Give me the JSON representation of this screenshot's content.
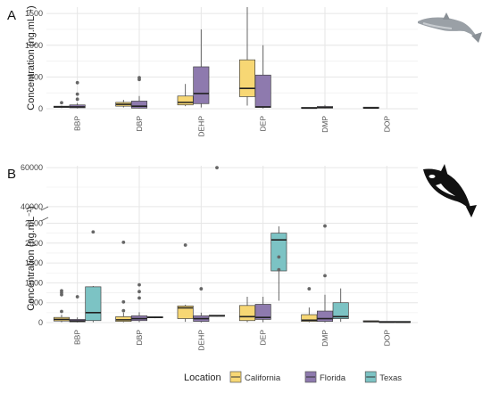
{
  "figure": {
    "panel_a_letter": "A",
    "panel_b_letter": "B",
    "legend_title": "Location",
    "legend_items": [
      {
        "label": "California",
        "color": "#F7D774"
      },
      {
        "label": "Florida",
        "color": "#8E7AAE"
      },
      {
        "label": "Texas",
        "color": "#7CC3C4"
      }
    ],
    "panel_a_icon": "dolphin-icon",
    "panel_b_icon": "orca-icon"
  },
  "chart_data": [
    {
      "type": "box",
      "panel": "A",
      "ylabel_main": "Concentration (ng.mL",
      "ylabel_sup": "−1",
      "ylabel_end": ")",
      "ylim": [
        0,
        1600
      ],
      "yticks": [
        0,
        500,
        1000,
        1500
      ],
      "categories": [
        "BBP",
        "DBP",
        "DEHP",
        "DEP",
        "DMP",
        "DOP"
      ],
      "grid": true,
      "series": [
        {
          "name": "California",
          "color": "#F7D774",
          "boxes": [
            {
              "category": "BBP",
              "q1": 20,
              "median": 30,
              "q3": 40,
              "whisker_low": 10,
              "whisker_high": 50,
              "outliers": [
                95
              ]
            },
            {
              "category": "DBP",
              "q1": 40,
              "median": 70,
              "q3": 100,
              "whisker_low": 20,
              "whisker_high": 140,
              "outliers": []
            },
            {
              "category": "DEHP",
              "q1": 60,
              "median": 100,
              "q3": 200,
              "whisker_low": 40,
              "whisker_high": 390,
              "outliers": []
            },
            {
              "category": "DEP",
              "q1": 190,
              "median": 320,
              "q3": 770,
              "whisker_low": 50,
              "whisker_high": 1600,
              "outliers": []
            },
            {
              "category": "DMP",
              "q1": 5,
              "median": 10,
              "q3": 15,
              "whisker_low": 2,
              "whisker_high": 20,
              "outliers": []
            },
            {
              "category": "DOP",
              "q1": 8,
              "median": 12,
              "q3": 16,
              "whisker_low": 5,
              "whisker_high": 20,
              "outliers": []
            }
          ]
        },
        {
          "name": "Florida",
          "color": "#8E7AAE",
          "boxes": [
            {
              "category": "BBP",
              "q1": 15,
              "median": 30,
              "q3": 60,
              "whisker_low": 5,
              "whisker_high": 90,
              "outliers": [
                150,
                230,
                410
              ]
            },
            {
              "category": "DBP",
              "q1": 10,
              "median": 40,
              "q3": 120,
              "whisker_low": 5,
              "whisker_high": 200,
              "outliers": [
                460,
                490
              ]
            },
            {
              "category": "DEHP",
              "q1": 80,
              "median": 240,
              "q3": 660,
              "whisker_low": 20,
              "whisker_high": 1250,
              "outliers": []
            },
            {
              "category": "DEP",
              "q1": 20,
              "median": 30,
              "q3": 530,
              "whisker_low": 5,
              "whisker_high": 1000,
              "outliers": []
            },
            {
              "category": "DMP",
              "q1": 10,
              "median": 20,
              "q3": 35,
              "whisker_low": 5,
              "whisker_high": 60,
              "outliers": []
            }
          ]
        }
      ]
    },
    {
      "type": "box",
      "panel": "B",
      "ylabel_main": "Concentration (ng.mL",
      "ylabel_sup": "−1",
      "ylabel_end": ")",
      "ylim_lower": [
        0,
        2600
      ],
      "yticks_lower": [
        0,
        500,
        1000,
        1500,
        2000,
        2500
      ],
      "ylim_upper": [
        39000,
        61000
      ],
      "yticks_upper": [
        40000,
        60000
      ],
      "categories": [
        "BBP",
        "DBP",
        "DEHP",
        "DEP",
        "DMP",
        "DOP"
      ],
      "grid": true,
      "series": [
        {
          "name": "California",
          "color": "#F7D774",
          "boxes": [
            {
              "category": "BBP",
              "q1": 40,
              "median": 80,
              "q3": 130,
              "whisker_low": 10,
              "whisker_high": 200,
              "outliers": [
                280,
                700,
                750,
                800
              ]
            },
            {
              "category": "DBP",
              "q1": 30,
              "median": 70,
              "q3": 150,
              "whisker_low": 10,
              "whisker_high": 250,
              "outliers": [
                300,
                520,
                2020
              ]
            },
            {
              "category": "DEHP",
              "q1": 100,
              "median": 370,
              "q3": 420,
              "whisker_low": 20,
              "whisker_high": 450,
              "outliers": [
                1950
              ]
            },
            {
              "category": "DEP",
              "q1": 50,
              "median": 150,
              "q3": 430,
              "whisker_low": 10,
              "whisker_high": 650,
              "outliers": []
            },
            {
              "category": "DMP",
              "q1": 30,
              "median": 60,
              "q3": 200,
              "whisker_low": 10,
              "whisker_high": 380,
              "outliers": [
                850
              ]
            },
            {
              "category": "DOP",
              "q1": 20,
              "median": 25,
              "q3": 35,
              "whisker_low": 10,
              "whisker_high": 40,
              "outliers": []
            }
          ]
        },
        {
          "name": "Florida",
          "color": "#8E7AAE",
          "boxes": [
            {
              "category": "BBP",
              "q1": 20,
              "median": 40,
              "q3": 80,
              "whisker_low": 5,
              "whisker_high": 130,
              "outliers": [
                650
              ]
            },
            {
              "category": "DBP",
              "q1": 50,
              "median": 100,
              "q3": 170,
              "whisker_low": 10,
              "whisker_high": 260,
              "outliers": [
                620,
                780,
                950
              ]
            },
            {
              "category": "DEHP",
              "q1": 30,
              "median": 100,
              "q3": 170,
              "whisker_low": 5,
              "whisker_high": 250,
              "outliers": [
                850
              ]
            },
            {
              "category": "DEP",
              "q1": 80,
              "median": 130,
              "q3": 460,
              "whisker_low": 10,
              "whisker_high": 650,
              "outliers": []
            },
            {
              "category": "DMP",
              "q1": 30,
              "median": 100,
              "q3": 290,
              "whisker_low": 5,
              "whisker_high": 700,
              "outliers": [
                1180,
                2430
              ]
            },
            {
              "category": "DOP",
              "q1": 5,
              "median": 10,
              "q3": 15,
              "whisker_low": 2,
              "whisker_high": 20,
              "outliers": []
            }
          ]
        },
        {
          "name": "Texas",
          "color": "#7CC3C4",
          "boxes": [
            {
              "category": "BBP",
              "q1": 50,
              "median": 250,
              "q3": 900,
              "whisker_low": 10,
              "whisker_high": 920,
              "outliers": [
                2280
              ]
            },
            {
              "category": "DBP",
              "q1": 120,
              "median": 130,
              "q3": 140,
              "whisker_low": 110,
              "whisker_high": 150,
              "outliers": []
            },
            {
              "category": "DEHP",
              "q1": 160,
              "median": 170,
              "q3": 180,
              "whisker_low": 150,
              "whisker_high": 190,
              "outliers": [
                60000
              ]
            },
            {
              "category": "DEP",
              "q1": 1300,
              "median": 2080,
              "q3": 2250,
              "whisker_low": 550,
              "whisker_high": 2420,
              "outliers": [
                1330,
                1650
              ]
            },
            {
              "category": "DMP",
              "q1": 100,
              "median": 150,
              "q3": 500,
              "whisker_low": 20,
              "whisker_high": 860,
              "outliers": []
            },
            {
              "category": "DOP",
              "q1": 5,
              "median": 10,
              "q3": 15,
              "whisker_low": 2,
              "whisker_high": 20,
              "outliers": []
            }
          ]
        }
      ]
    }
  ]
}
